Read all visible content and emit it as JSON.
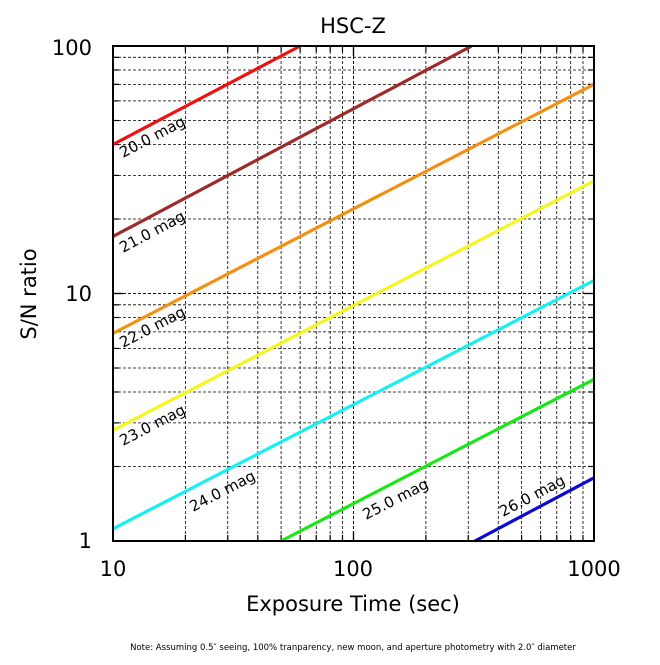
{
  "chart_data": {
    "type": "line",
    "title": "HSC-Z",
    "xlabel": "Exposure Time (sec)",
    "ylabel": "S/N ratio",
    "x_scale": "log",
    "y_scale": "log",
    "xlim": [
      10,
      1000
    ],
    "ylim": [
      1,
      100
    ],
    "xticks": [
      10,
      100,
      1000
    ],
    "xtick_labels": [
      "10",
      "100",
      "1000"
    ],
    "yticks": [
      1,
      10,
      100
    ],
    "ytick_labels": [
      "1",
      "10",
      "100"
    ],
    "grid": true,
    "note": "Note: Assuming 0.5″ seeing, 100% tranparency, new moon, and aperture photometry with 2.0″ diameter",
    "series": [
      {
        "name": "20.0 mag",
        "color": "#ee1111",
        "points": [
          [
            10,
            40
          ],
          [
            60,
            100
          ]
        ]
      },
      {
        "name": "21.0 mag",
        "color": "#9e2a2a",
        "points": [
          [
            10,
            17
          ],
          [
            310,
            100
          ]
        ]
      },
      {
        "name": "22.0 mag",
        "color": "#f39012",
        "points": [
          [
            10,
            6.9
          ],
          [
            1000,
            70
          ]
        ]
      },
      {
        "name": "23.0 mag",
        "color": "#f5f520",
        "points": [
          [
            10,
            2.8
          ],
          [
            1000,
            28.5
          ]
        ]
      },
      {
        "name": "24.0 mag",
        "color": "#18f0f0",
        "points": [
          [
            10,
            1.12
          ],
          [
            1000,
            11.3
          ]
        ]
      },
      {
        "name": "25.0 mag",
        "color": "#16e816",
        "points": [
          [
            50,
            1.0
          ],
          [
            1000,
            4.5
          ]
        ]
      },
      {
        "name": "26.0 mag",
        "color": "#0a0ad2",
        "points": [
          [
            320,
            1.0
          ],
          [
            1000,
            1.8
          ]
        ]
      }
    ]
  }
}
